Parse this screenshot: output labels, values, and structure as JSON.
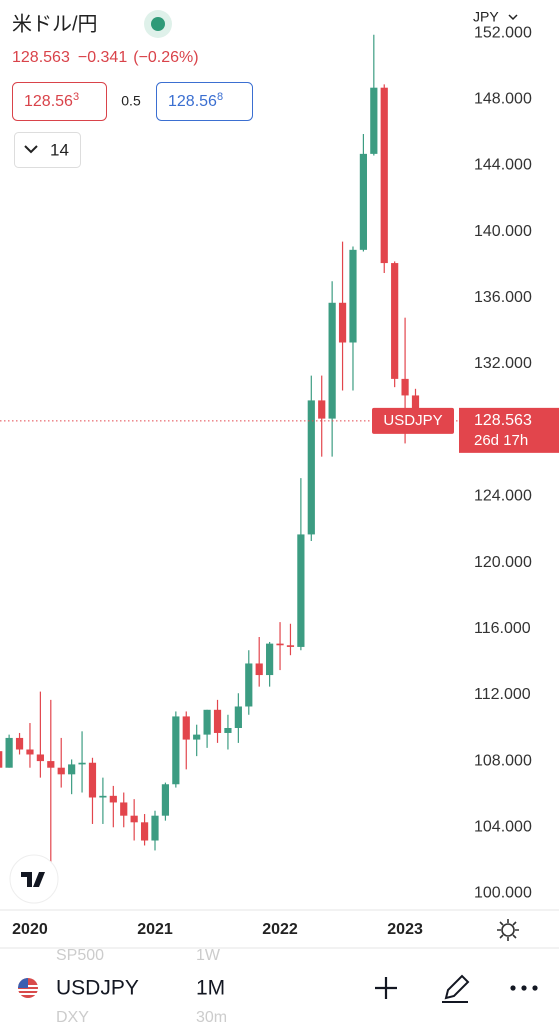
{
  "header": {
    "title": "米ドル/円",
    "price": "128.563",
    "change": "−0.341",
    "change_pct": "(−0.26%)",
    "sell": {
      "main": "128.56",
      "pip": "3"
    },
    "spread": "0.5",
    "buy": {
      "main": "128.56",
      "pip": "8"
    },
    "indicator_count": "14",
    "currency": "JPY"
  },
  "chart_data": {
    "type": "candlestick",
    "symbol": "USDJPY",
    "countdown": "26d 17h",
    "up_color": "#3c9c82",
    "down_color": "#e2454c",
    "categories": [
      null,
      null,
      null,
      "2020",
      null,
      null,
      null,
      null,
      null,
      null,
      null,
      null,
      null,
      null,
      null,
      "2021",
      null,
      null,
      null,
      null,
      null,
      null,
      null,
      null,
      null,
      null,
      null,
      "2022",
      null,
      null,
      null,
      null,
      null,
      null,
      null,
      null,
      null,
      null,
      null,
      "2023",
      null
    ],
    "open": [
      108.6,
      107.6,
      109.4,
      108.7,
      108.4,
      108.0,
      107.6,
      107.2,
      107.8,
      107.9,
      105.8,
      105.9,
      105.5,
      104.7,
      104.3,
      103.2,
      104.7,
      106.6,
      110.7,
      109.3,
      109.6,
      111.1,
      109.7,
      110.0,
      111.3,
      113.9,
      113.2,
      115.1,
      115.0,
      114.9,
      121.7,
      129.8,
      128.7,
      135.7,
      133.3,
      138.9,
      144.7,
      148.7,
      138.1,
      131.1,
      130.1
    ],
    "high": [
      109.3,
      109.6,
      109.7,
      110.3,
      112.2,
      111.7,
      109.4,
      108.1,
      109.8,
      108.2,
      107.0,
      106.5,
      106.1,
      105.7,
      104.8,
      105.0,
      106.7,
      111.0,
      111.0,
      110.2,
      111.1,
      111.7,
      110.8,
      112.1,
      114.7,
      115.5,
      115.2,
      116.4,
      116.3,
      125.1,
      131.3,
      131.3,
      137.0,
      139.4,
      139.1,
      145.9,
      151.9,
      148.9,
      138.2,
      134.8,
      130.5
    ],
    "low": [
      106.5,
      107.6,
      108.4,
      107.6,
      107.0,
      101.2,
      106.4,
      106.0,
      106.1,
      104.2,
      104.2,
      104.0,
      104.0,
      103.2,
      102.9,
      102.6,
      104.4,
      106.4,
      107.5,
      108.3,
      108.8,
      109.1,
      108.7,
      109.1,
      110.8,
      112.5,
      112.5,
      113.5,
      114.4,
      114.7,
      121.3,
      126.4,
      126.4,
      130.4,
      130.4,
      138.8,
      144.6,
      137.5,
      130.6,
      127.2,
      128.1
    ],
    "close": [
      107.6,
      109.4,
      108.7,
      108.4,
      108.0,
      107.6,
      107.2,
      107.8,
      107.9,
      105.8,
      105.9,
      105.5,
      104.7,
      104.3,
      103.2,
      104.7,
      106.6,
      110.7,
      109.3,
      109.6,
      111.1,
      109.7,
      110.0,
      111.3,
      113.9,
      113.2,
      115.1,
      115.0,
      114.9,
      121.7,
      129.8,
      128.7,
      135.7,
      133.3,
      138.9,
      144.7,
      148.7,
      138.1,
      131.1,
      130.1,
      128.563
    ],
    "ylim": [
      99,
      154
    ],
    "yticks": [
      {
        "value": 100,
        "label": "100.000"
      },
      {
        "value": 104,
        "label": "104.000"
      },
      {
        "value": 108,
        "label": "108.000"
      },
      {
        "value": 112,
        "label": "112.000"
      },
      {
        "value": 116,
        "label": "116.000"
      },
      {
        "value": 120,
        "label": "120.000"
      },
      {
        "value": 124,
        "label": "124.000"
      },
      {
        "value": 128,
        "label": "128.000"
      },
      {
        "value": 132,
        "label": "132.000"
      },
      {
        "value": 136,
        "label": "136.000"
      },
      {
        "value": 140,
        "label": "140.000"
      },
      {
        "value": 144,
        "label": "144.000"
      },
      {
        "value": 148,
        "label": "148.000"
      },
      {
        "value": 152,
        "label": "152.000"
      }
    ]
  },
  "toolbar": {
    "symbol": "USDJPY",
    "interval": "1M",
    "ghost": [
      "SP500",
      "1W",
      "DXY",
      "30m"
    ]
  }
}
